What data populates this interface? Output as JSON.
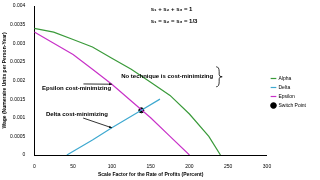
{
  "chart_data": {
    "type": "line",
    "x_label": "Scale Factor for the Rate of Profits (Percent)",
    "y_label": "Wage (Numeraire Units per Person-Year)",
    "xlim": [
      0,
      300
    ],
    "xticks": [
      0,
      50,
      100,
      150,
      200,
      250,
      300
    ],
    "ylim": [
      0,
      0.004
    ],
    "yticks": [
      0,
      0.0005,
      0.001,
      0.0015,
      0.002,
      0.0025,
      0.003,
      0.0035,
      0.004
    ],
    "grid": false,
    "legend": "right",
    "series": [
      {
        "name": "Alpha",
        "color": "#3a9a3a",
        "type": "line",
        "marker": "none",
        "line_style": "solid",
        "x": [
          0,
          25,
          50,
          75,
          100,
          125,
          150,
          175,
          200,
          225,
          240
        ],
        "values": [
          0.0034,
          0.0033,
          0.0031,
          0.0029,
          0.0026,
          0.0023,
          0.00195,
          0.0016,
          0.0011,
          0.0005,
          0
        ]
      },
      {
        "name": "Delta",
        "color": "#3fa9d0",
        "type": "line",
        "marker": "none",
        "line_style": "solid",
        "x": [
          42,
          75,
          100,
          138,
          162
        ],
        "values": [
          0,
          0.0004,
          0.00073,
          0.0012,
          0.0015
        ]
      },
      {
        "name": "Epsilon",
        "color": "#c832c8",
        "type": "line",
        "marker": "none",
        "line_style": "solid",
        "x": [
          0,
          25,
          50,
          75,
          100,
          125,
          150,
          175,
          200
        ],
        "values": [
          0.0033,
          0.003,
          0.0027,
          0.0023,
          0.0019,
          0.00145,
          0.001,
          0.0005,
          0
        ]
      },
      {
        "name": "Switch Point",
        "color": "#000000",
        "type": "scatter",
        "marker": "circle",
        "x": [
          138
        ],
        "values": [
          0.0012
        ]
      }
    ],
    "annotations": [
      {
        "text": "s₁ + s₂ + s₃ = 1",
        "x": 150,
        "y": 0.0039
      },
      {
        "text": "s₁ = s₂ = s₃ = 1/3",
        "x": 150,
        "y": 0.0036
      },
      {
        "text": "No technique is cost-minimizing",
        "x": 112,
        "y": 0.0021,
        "bracket": true
      },
      {
        "text": "Epsilon cost-minimizing",
        "x": 10,
        "y": 0.0018,
        "arrow_to": [
          100,
          0.0019
        ]
      },
      {
        "text": "Delta cost-minimizing",
        "x": 15,
        "y": 0.0011,
        "arrow_to": [
          100,
          0.00073
        ]
      }
    ]
  }
}
